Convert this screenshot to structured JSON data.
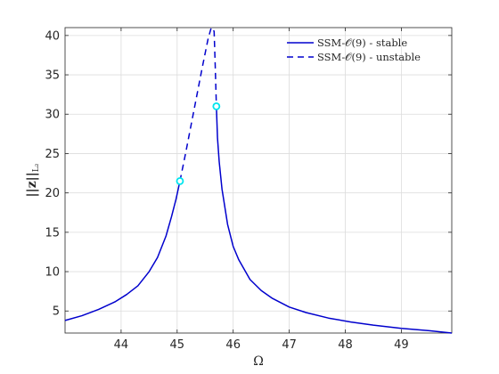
{
  "chart_data": {
    "type": "line",
    "xlabel": "Ω",
    "ylabel": "||z||L₂",
    "xlim": [
      43.0,
      49.9
    ],
    "ylim": [
      2.2,
      41.0
    ],
    "xticks": [
      44,
      45,
      46,
      47,
      48,
      49
    ],
    "yticks": [
      5,
      10,
      15,
      20,
      25,
      30,
      35,
      40
    ],
    "grid": true,
    "legend_position": "top-right",
    "series": [
      {
        "name": "SSM-𝒪(9) - stable",
        "style": "solid",
        "color": "#0000cd",
        "x": [
          43.0,
          43.3,
          43.6,
          43.9,
          44.1,
          44.3,
          44.5,
          44.65,
          44.8,
          44.9,
          44.98,
          45.05
        ],
        "y": [
          3.8,
          4.4,
          5.2,
          6.2,
          7.1,
          8.2,
          10.0,
          11.8,
          14.5,
          17.0,
          19.2,
          21.5
        ]
      },
      {
        "name": "SSM-𝒪(9) - unstable",
        "style": "dashed",
        "color": "#0000cd",
        "x": [
          45.05,
          45.15,
          45.3,
          45.45,
          45.55,
          45.6,
          45.63,
          45.66,
          45.68,
          45.7
        ],
        "y": [
          21.5,
          25.0,
          30.5,
          36.0,
          39.5,
          40.8,
          41.0,
          40.5,
          36.0,
          31.0
        ]
      },
      {
        "name": "",
        "style": "solid",
        "color": "#0000cd",
        "x": [
          45.7,
          45.72,
          45.75,
          45.8,
          45.9,
          46.0,
          46.1,
          46.3,
          46.5,
          46.7,
          47.0,
          47.3,
          47.7,
          48.1,
          48.5,
          49.0,
          49.5,
          49.9
        ],
        "y": [
          31.0,
          27.0,
          24.0,
          20.5,
          16.0,
          13.2,
          11.5,
          9.0,
          7.6,
          6.6,
          5.5,
          4.8,
          4.1,
          3.6,
          3.2,
          2.8,
          2.5,
          2.2
        ]
      }
    ],
    "markers": [
      {
        "x": 45.05,
        "y": 21.5,
        "color": "#00e5ee"
      },
      {
        "x": 45.7,
        "y": 31.0,
        "color": "#00e5ee"
      }
    ]
  }
}
